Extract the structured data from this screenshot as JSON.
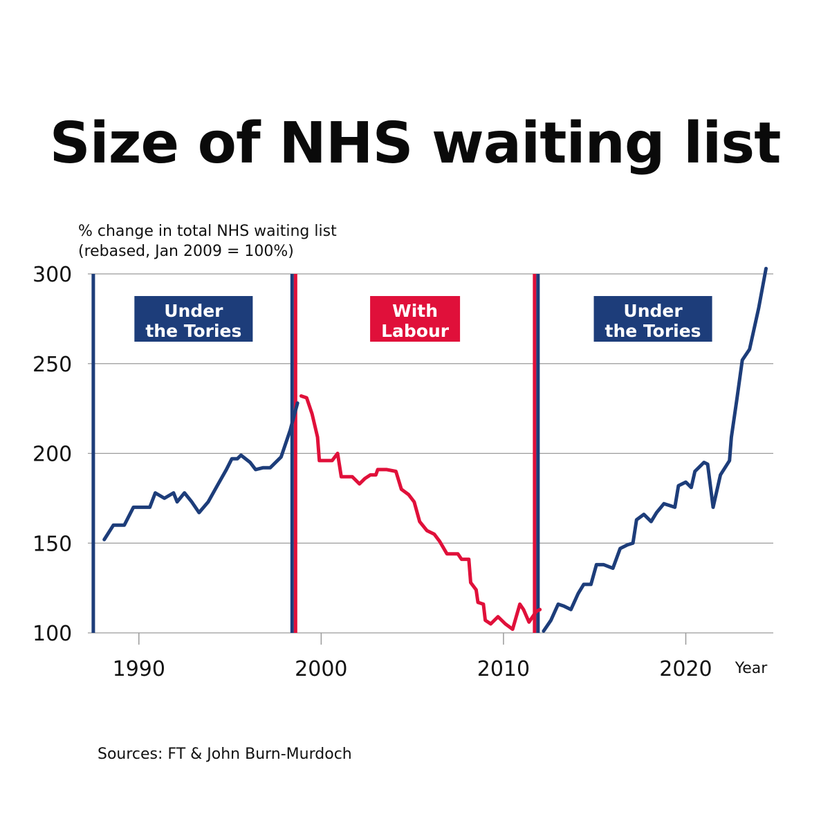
{
  "title": "Size of NHS waiting list",
  "ylabel_lines": [
    "% change in total NHS waiting list",
    "(rebased, Jan 2009 = 100%)"
  ],
  "source": "Sources: FT & John Burn-Murdoch",
  "colors": {
    "tory": "#1d3d7a",
    "labour": "#e0103a",
    "grid": "#9a9a9a",
    "text": "#111111"
  },
  "chart_data": {
    "type": "line",
    "title": "Size of NHS waiting list",
    "ylabel": "% change in total NHS waiting list (rebased, Jan 2009 = 100%)",
    "xlabel": "Year",
    "xlim": [
      1987.2,
      2024.8
    ],
    "ylim": [
      100,
      300
    ],
    "x_ticks": [
      1990,
      2000,
      2010,
      2020
    ],
    "y_ticks": [
      100,
      150,
      200,
      250,
      300
    ],
    "grid": "horizontal",
    "series": [
      {
        "name": "Under the Tories",
        "color": "#1d3d7a",
        "points": [
          [
            1988.1,
            152
          ],
          [
            1988.6,
            160
          ],
          [
            1989.2,
            160
          ],
          [
            1989.7,
            170
          ],
          [
            1990.2,
            170
          ],
          [
            1990.6,
            170
          ],
          [
            1990.9,
            178
          ],
          [
            1991.4,
            175
          ],
          [
            1991.9,
            178
          ],
          [
            1992.1,
            173
          ],
          [
            1992.5,
            178
          ],
          [
            1992.9,
            173
          ],
          [
            1993.3,
            167
          ],
          [
            1993.8,
            173
          ],
          [
            1994.3,
            182
          ],
          [
            1994.8,
            191
          ],
          [
            1995.1,
            197
          ],
          [
            1995.4,
            197
          ],
          [
            1995.6,
            199
          ],
          [
            1996.1,
            195
          ],
          [
            1996.4,
            191
          ],
          [
            1996.8,
            192
          ],
          [
            1997.2,
            192
          ],
          [
            1997.8,
            198
          ],
          [
            1998.3,
            213
          ],
          [
            1998.7,
            228
          ]
        ]
      },
      {
        "name": "With Labour",
        "color": "#e0103a",
        "points": [
          [
            1998.9,
            232
          ],
          [
            1999.2,
            231
          ],
          [
            1999.5,
            222
          ],
          [
            1999.8,
            209
          ],
          [
            1999.9,
            196
          ],
          [
            2000.3,
            196
          ],
          [
            2000.6,
            196
          ],
          [
            2000.9,
            200
          ],
          [
            2001.1,
            187
          ],
          [
            2001.4,
            187
          ],
          [
            2001.7,
            187
          ],
          [
            2002.1,
            183
          ],
          [
            2002.4,
            186
          ],
          [
            2002.7,
            188
          ],
          [
            2003.0,
            188
          ],
          [
            2003.1,
            191
          ],
          [
            2003.6,
            191
          ],
          [
            2004.1,
            190
          ],
          [
            2004.4,
            180
          ],
          [
            2004.8,
            177
          ],
          [
            2005.1,
            173
          ],
          [
            2005.4,
            162
          ],
          [
            2005.8,
            157
          ],
          [
            2006.2,
            155
          ],
          [
            2006.5,
            151
          ],
          [
            2006.9,
            144
          ],
          [
            2007.2,
            144
          ],
          [
            2007.5,
            144
          ],
          [
            2007.7,
            141
          ],
          [
            2008.1,
            141
          ],
          [
            2008.2,
            128
          ],
          [
            2008.5,
            124
          ],
          [
            2008.6,
            117
          ],
          [
            2008.9,
            116
          ],
          [
            2009.0,
            107
          ],
          [
            2009.3,
            105
          ],
          [
            2009.7,
            109
          ],
          [
            2010.1,
            105
          ],
          [
            2010.5,
            102
          ],
          [
            2010.9,
            116
          ],
          [
            2011.1,
            113
          ],
          [
            2011.4,
            106
          ],
          [
            2011.8,
            112
          ],
          [
            2012.0,
            113
          ]
        ]
      },
      {
        "name": "Under the Tories",
        "color": "#1d3d7a",
        "points": [
          [
            2012.2,
            101
          ],
          [
            2012.6,
            107
          ],
          [
            2013.0,
            116
          ],
          [
            2013.3,
            115
          ],
          [
            2013.7,
            113
          ],
          [
            2014.1,
            122
          ],
          [
            2014.4,
            127
          ],
          [
            2014.8,
            127
          ],
          [
            2015.1,
            138
          ],
          [
            2015.5,
            138
          ],
          [
            2016.0,
            136
          ],
          [
            2016.4,
            147
          ],
          [
            2016.8,
            149
          ],
          [
            2017.1,
            150
          ],
          [
            2017.3,
            163
          ],
          [
            2017.7,
            166
          ],
          [
            2018.1,
            162
          ],
          [
            2018.4,
            167
          ],
          [
            2018.8,
            172
          ],
          [
            2019.1,
            171
          ],
          [
            2019.4,
            170
          ],
          [
            2019.6,
            182
          ],
          [
            2020.0,
            184
          ],
          [
            2020.3,
            181
          ],
          [
            2020.5,
            190
          ],
          [
            2021.0,
            195
          ],
          [
            2021.2,
            194
          ],
          [
            2021.5,
            170
          ],
          [
            2021.9,
            188
          ],
          [
            2022.4,
            196
          ],
          [
            2022.5,
            209
          ],
          [
            2022.8,
            230
          ],
          [
            2023.1,
            252
          ],
          [
            2023.5,
            258
          ],
          [
            2024.0,
            281
          ],
          [
            2024.4,
            303
          ]
        ]
      }
    ],
    "periods": [
      {
        "label": "Under the Tories",
        "lines": [
          "Under",
          "the Tories"
        ],
        "start": 1987.5,
        "end": 1998.5,
        "color": "#1d3d7a"
      },
      {
        "label": "With Labour",
        "lines": [
          "With",
          "Labour"
        ],
        "start": 1998.5,
        "end": 2011.8,
        "color": "#e0103a"
      },
      {
        "label": "Under the Tories",
        "lines": [
          "Under",
          "the Tories"
        ],
        "start": 2011.8,
        "end": 2024.6,
        "color": "#1d3d7a"
      }
    ],
    "boundaries": [
      {
        "x": 1987.5,
        "colors": [
          "#1d3d7a"
        ]
      },
      {
        "x": 1998.5,
        "colors": [
          "#1d3d7a",
          "#e0103a"
        ]
      },
      {
        "x": 2011.8,
        "colors": [
          "#e0103a",
          "#1d3d7a"
        ]
      }
    ]
  }
}
